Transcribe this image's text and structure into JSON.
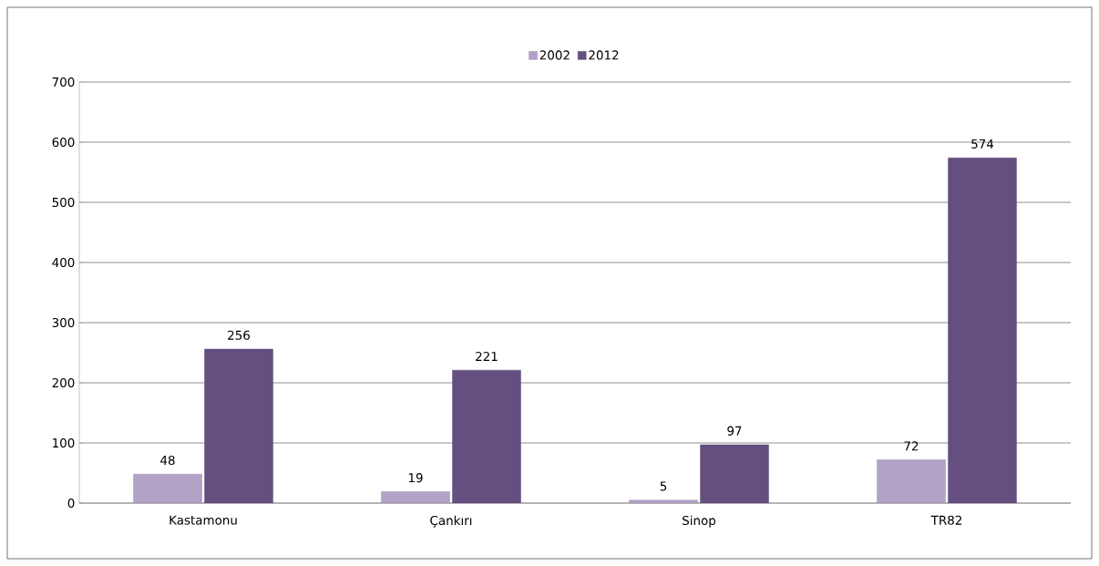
{
  "chart_data": {
    "type": "bar",
    "categories": [
      "Kastamonu",
      "Çankırı",
      "Sinop",
      "TR82"
    ],
    "series": [
      {
        "name": "2002",
        "color": "#b3a2c7",
        "values": [
          48,
          19,
          5,
          72
        ]
      },
      {
        "name": "2012",
        "color": "#654e80",
        "values": [
          256,
          221,
          97,
          574
        ]
      }
    ],
    "ylim": [
      0,
      700
    ],
    "yticks": [
      0,
      100,
      200,
      300,
      400,
      500,
      600,
      700
    ],
    "grid": "y",
    "legend": "top",
    "data_labels": true
  }
}
